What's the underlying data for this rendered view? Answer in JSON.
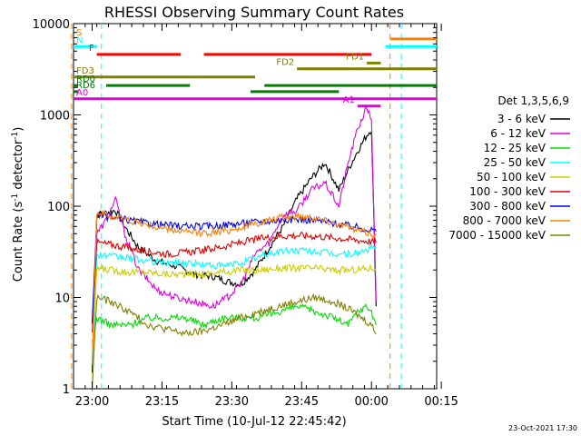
{
  "chart_data": {
    "type": "line",
    "title": "RHESSI Observing Summary Count Rates",
    "xlabel": "Start Time (10-Jul-12 22:45:42)",
    "ylabel_parts": [
      "Count Rate (s",
      "-1",
      " detector",
      "-1",
      ")"
    ],
    "y_scale": "log",
    "ylim": [
      1,
      10000
    ],
    "xlim_minutes": [
      -2,
      37
    ],
    "x_ticks": [
      {
        "t": 0,
        "label": "23:00"
      },
      {
        "t": 7.5,
        "label": "23:15"
      },
      {
        "t": 15,
        "label": "23:30"
      },
      {
        "t": 22.5,
        "label": "23:45"
      },
      {
        "t": 30,
        "label": "00:00"
      },
      {
        "t": 37.5,
        "label": "00:15"
      }
    ],
    "y_ticks": [
      {
        "v": 1,
        "label": "1"
      },
      {
        "v": 10,
        "label": "10"
      },
      {
        "v": 100,
        "label": "100"
      },
      {
        "v": 1000,
        "label": "1000"
      },
      {
        "v": 10000,
        "label": "10000"
      }
    ],
    "legend_title": "Det 1,3,5,6,9",
    "series": [
      {
        "name": "3 - 6 keV",
        "color": "#000000",
        "x": [
          0,
          0.5,
          1.5,
          2.5,
          3.5,
          5,
          7,
          9,
          11,
          13,
          14.5,
          16,
          17.5,
          19,
          20.5,
          22,
          23.5,
          25,
          26.5,
          27.5,
          28.5,
          29.5,
          30,
          30.5
        ],
        "values": [
          1.5,
          80,
          85,
          90,
          60,
          35,
          25,
          22,
          18,
          17,
          15,
          14,
          20,
          35,
          60,
          120,
          200,
          300,
          150,
          250,
          400,
          600,
          700,
          8
        ]
      },
      {
        "name": "6 - 12 keV",
        "color": "#e000e0",
        "x": [
          0,
          0.5,
          1.5,
          2.5,
          3.5,
          5,
          7,
          9,
          11,
          13,
          14.5,
          16,
          17.5,
          19,
          20.5,
          22,
          23.5,
          25,
          26.5,
          27.5,
          28.5,
          29.5,
          30,
          30.5
        ],
        "values": [
          4,
          50,
          70,
          120,
          50,
          20,
          12,
          10,
          9,
          8,
          10,
          14,
          30,
          40,
          80,
          90,
          150,
          180,
          100,
          300,
          700,
          1200,
          900,
          9
        ]
      },
      {
        "name": "12 - 25 keV",
        "color": "#00dd00",
        "x": [
          0,
          0.5,
          2,
          4,
          6,
          8,
          10,
          12,
          14,
          16,
          18,
          20,
          22,
          24,
          26,
          27.5,
          28.5,
          29.5,
          30,
          30.5
        ],
        "values": [
          3,
          6,
          5,
          5,
          6,
          6,
          6,
          5,
          6,
          6,
          6,
          7,
          8,
          7,
          6,
          5,
          7,
          8,
          7,
          5
        ]
      },
      {
        "name": "25 - 50 keV",
        "color": "#00ffff",
        "x": [
          0,
          0.5,
          2,
          4,
          6,
          8,
          10,
          12,
          14,
          16,
          18,
          20,
          22,
          24,
          26,
          28,
          30,
          30.5
        ],
        "values": [
          1,
          30,
          28,
          27,
          25,
          24,
          24,
          23,
          22,
          24,
          28,
          32,
          33,
          32,
          30,
          30,
          34,
          35
        ]
      },
      {
        "name": "50 - 100 keV",
        "color": "#cccc00",
        "x": [
          0,
          0.5,
          2,
          4,
          6,
          8,
          10,
          12,
          14,
          16,
          18,
          20,
          22,
          24,
          26,
          28,
          30,
          30.5
        ],
        "values": [
          2,
          21,
          20,
          19,
          19,
          18,
          18,
          18,
          19,
          20,
          20,
          21,
          21,
          21,
          20,
          20,
          21,
          21
        ]
      },
      {
        "name": "100 - 300 keV",
        "color": "#e00000",
        "x": [
          0,
          0.5,
          2,
          4,
          6,
          8,
          10,
          12,
          14,
          16,
          18,
          20,
          22,
          24,
          26,
          28,
          30,
          30.5
        ],
        "values": [
          5,
          40,
          38,
          35,
          32,
          30,
          31,
          33,
          36,
          40,
          44,
          47,
          48,
          47,
          45,
          43,
          41,
          40
        ]
      },
      {
        "name": "300 - 800 keV",
        "color": "#0000ee",
        "x": [
          0,
          0.5,
          2,
          4,
          6,
          8,
          10,
          12,
          14,
          16,
          18,
          20,
          22,
          24,
          26,
          28,
          30,
          30.5
        ],
        "values": [
          5,
          80,
          75,
          70,
          65,
          62,
          60,
          60,
          62,
          65,
          68,
          70,
          72,
          70,
          65,
          60,
          55,
          53
        ]
      },
      {
        "name": "800 - 7000 keV",
        "color": "#ff7f00",
        "x": [
          0,
          0.5,
          2,
          4,
          6,
          8,
          10,
          12,
          14,
          16,
          18,
          20,
          22,
          24,
          26,
          28,
          30,
          30.5
        ],
        "values": [
          2,
          85,
          78,
          70,
          62,
          56,
          52,
          51,
          53,
          58,
          66,
          74,
          78,
          75,
          66,
          56,
          50,
          48
        ]
      },
      {
        "name": "7000 - 15000 keV",
        "color": "#808000",
        "x": [
          0,
          0.5,
          2,
          4,
          6,
          8,
          10,
          12,
          14,
          16,
          18,
          20,
          22,
          24,
          26,
          28,
          30,
          30.5
        ],
        "values": [
          1,
          10,
          9,
          7,
          5,
          4.5,
          4,
          4.3,
          5,
          6,
          7,
          8,
          9,
          10,
          9,
          7,
          5,
          4
        ]
      }
    ],
    "flags": [
      {
        "label": "S",
        "color": "#ff7f00",
        "value": 6800,
        "segments": [
          [
            -5,
            -2.5
          ],
          [
            32,
            37
          ]
        ]
      },
      {
        "label": "N",
        "color": "#00ffff",
        "value": 5600,
        "segments": [
          [
            -5,
            0.5
          ],
          [
            31.5,
            37
          ]
        ]
      },
      {
        "label": "F",
        "color": "#ff0000",
        "value": 4600,
        "segments": [
          [
            0.5,
            9.5
          ],
          [
            12,
            30
          ]
        ]
      },
      {
        "label": "FD1",
        "color": "#808000",
        "value": 3700,
        "segments": [
          [
            29.5,
            31
          ]
        ]
      },
      {
        "label": "FD2",
        "color": "#808000",
        "value": 3200,
        "segments": [
          [
            22,
            37
          ]
        ]
      },
      {
        "label": "FD3",
        "color": "#808000",
        "value": 2600,
        "segments": [
          [
            -5,
            17.5
          ]
        ]
      },
      {
        "label": "RD0",
        "color": "#008000",
        "value": 2100,
        "segments": [
          [
            -5,
            -1.5
          ],
          [
            1.5,
            10.5
          ],
          [
            18.5,
            37
          ]
        ]
      },
      {
        "label": "RD6",
        "color": "#008000",
        "value": 1800,
        "segments": [
          [
            -5,
            -1.5
          ],
          [
            17,
            26.5
          ]
        ]
      },
      {
        "label": "A0",
        "color": "#e000e0",
        "value": 1500,
        "segments": [
          [
            -5,
            37
          ]
        ]
      },
      {
        "label": "A1",
        "color": "#e000e0",
        "value": 1250,
        "segments": [
          [
            28.5,
            31
          ]
        ]
      }
    ],
    "vlines": [
      {
        "color": "#ff7f00",
        "t": -2.2
      },
      {
        "color": "#00ffff",
        "t": 1.0
      },
      {
        "color": "#ff7f00",
        "t": 32.0
      },
      {
        "color": "#00ffff",
        "t": 33.2
      }
    ]
  },
  "footer": {
    "timestamp": "23-Oct-2021 17:30"
  }
}
